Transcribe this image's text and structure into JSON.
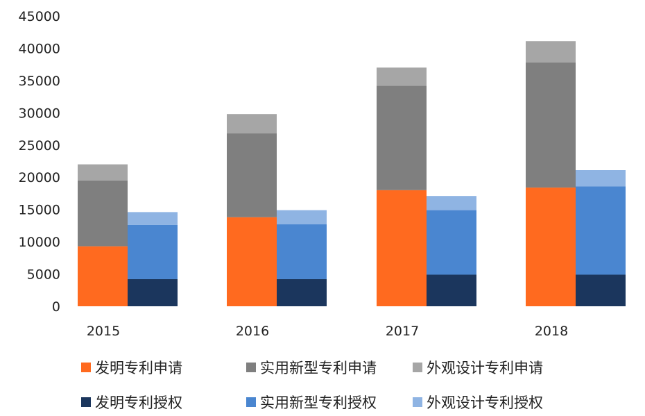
{
  "chart_data": {
    "type": "bar",
    "title": "",
    "xlabel": "",
    "ylabel": "",
    "ylim": [
      0,
      45000
    ],
    "yticks": [
      0,
      5000,
      10000,
      15000,
      20000,
      25000,
      30000,
      35000,
      40000,
      45000
    ],
    "grid": false,
    "legend_position": "bottom",
    "categories": [
      "2015",
      "2016",
      "2017",
      "2018"
    ],
    "stacks": [
      {
        "stack": "applications",
        "series": [
          {
            "name": "发明专利申请",
            "color": "#FF6A1F",
            "values": [
              9300,
              13800,
              18000,
              18400
            ]
          },
          {
            "name": "实用新型专利申请",
            "color": "#7F7F7F",
            "values": [
              10200,
              13000,
              16200,
              19400
            ]
          },
          {
            "name": "外观设计专利申请",
            "color": "#A6A6A6",
            "values": [
              2500,
              3000,
              2800,
              3300
            ]
          }
        ]
      },
      {
        "stack": "grants",
        "series": [
          {
            "name": "发明专利授权",
            "color": "#1B365D",
            "values": [
              4200,
              4200,
              4900,
              4900
            ]
          },
          {
            "name": "实用新型专利授权",
            "color": "#4A86D0",
            "values": [
              8400,
              8500,
              10000,
              13700
            ]
          },
          {
            "name": "外观设计专利授权",
            "color": "#8FB4E3",
            "values": [
              2000,
              2200,
              2200,
              2500
            ]
          }
        ]
      }
    ]
  }
}
